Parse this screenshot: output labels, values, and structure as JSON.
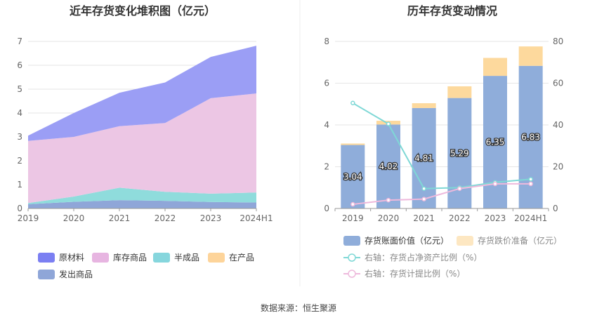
{
  "footer": {
    "source": "数据来源：恒生聚源"
  },
  "chart_data": [
    {
      "type": "area",
      "stacked": true,
      "title": "近年存货变化堆积图（亿元）",
      "categories": [
        "2019",
        "2020",
        "2021",
        "2022",
        "2023",
        "2024H1"
      ],
      "yticks": [
        "0",
        "1",
        "2",
        "3",
        "4",
        "5",
        "6",
        "7"
      ],
      "ylim": [
        0,
        7
      ],
      "legend_position": "bottom",
      "series": [
        {
          "name": "发出商品",
          "color": "#8fa6d8",
          "values": [
            0.18,
            0.28,
            0.35,
            0.32,
            0.27,
            0.25
          ]
        },
        {
          "name": "在产品",
          "color": "#fdd89a",
          "values": [
            0.0,
            0.0,
            0.0,
            0.0,
            0.0,
            0.0
          ]
        },
        {
          "name": "半成品",
          "color": "#8fdcdc",
          "values": [
            0.05,
            0.22,
            0.52,
            0.38,
            0.35,
            0.42
          ]
        },
        {
          "name": "库存商品",
          "color": "#ecc6e4",
          "values": [
            2.6,
            2.5,
            2.58,
            2.88,
            4.0,
            4.15
          ]
        },
        {
          "name": "原材料",
          "color": "#9b9ef5",
          "values": [
            0.22,
            1.0,
            1.4,
            1.7,
            1.73,
            2.0
          ]
        }
      ],
      "legend_order": [
        "原材料",
        "库存商品",
        "半成品",
        "在产品",
        "发出商品"
      ],
      "legend_swatch_colors": {
        "原材料": "#7b7ff2",
        "库存商品": "#e7b5e1",
        "半成品": "#86d6dd",
        "在产品": "#fdd49a",
        "发出商品": "#8fa6d8"
      }
    },
    {
      "type": "bar+line",
      "title": "历年存货变动情况",
      "categories": [
        "2019",
        "2020",
        "2021",
        "2022",
        "2023",
        "2024H1"
      ],
      "left_axis": {
        "ylim": [
          0,
          8
        ],
        "ticks": [
          "0",
          "2",
          "4",
          "6",
          "8"
        ]
      },
      "right_axis": {
        "ylim": [
          0,
          80
        ],
        "ticks": [
          "0",
          "20",
          "40",
          "60",
          "80"
        ]
      },
      "bars": [
        {
          "name": "存货账面价值（亿元）",
          "color": "#8fadda",
          "values": [
            3.04,
            4.02,
            4.81,
            5.29,
            6.35,
            6.83
          ],
          "labels": [
            "3.04",
            "4.02",
            "4.81",
            "5.29",
            "6.35",
            "6.83"
          ]
        },
        {
          "name": "存货跌价准备（亿元）",
          "color": "#fdd99d",
          "values": [
            0.07,
            0.18,
            0.23,
            0.56,
            0.86,
            0.93
          ]
        }
      ],
      "lines": [
        {
          "name": "右轴：存货占净资产比例（%）",
          "color": "#7fd8d6",
          "values": [
            50.5,
            40.5,
            9.5,
            10.0,
            12.5,
            14.0
          ]
        },
        {
          "name": "右轴：存货计提比例（%）",
          "color": "#eeb9dc",
          "values": [
            2.0,
            4.0,
            4.5,
            9.5,
            11.8,
            11.8
          ]
        }
      ]
    }
  ]
}
